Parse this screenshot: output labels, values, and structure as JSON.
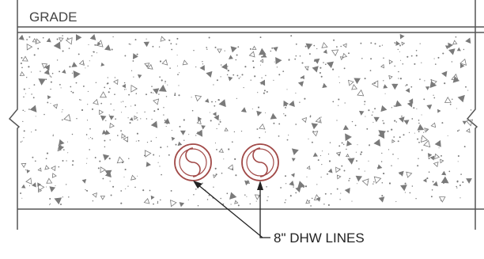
{
  "labels": {
    "grade": "GRADE",
    "lines": "8\" DHW LINES"
  },
  "colors": {
    "line": "#555555",
    "pipe": "#a24a48",
    "aggregate": "#7a7a7a",
    "text": "#222222"
  },
  "symbols": {
    "pipe_symbol": "pipe-section-icon",
    "break_symbol": "break-line-icon"
  }
}
